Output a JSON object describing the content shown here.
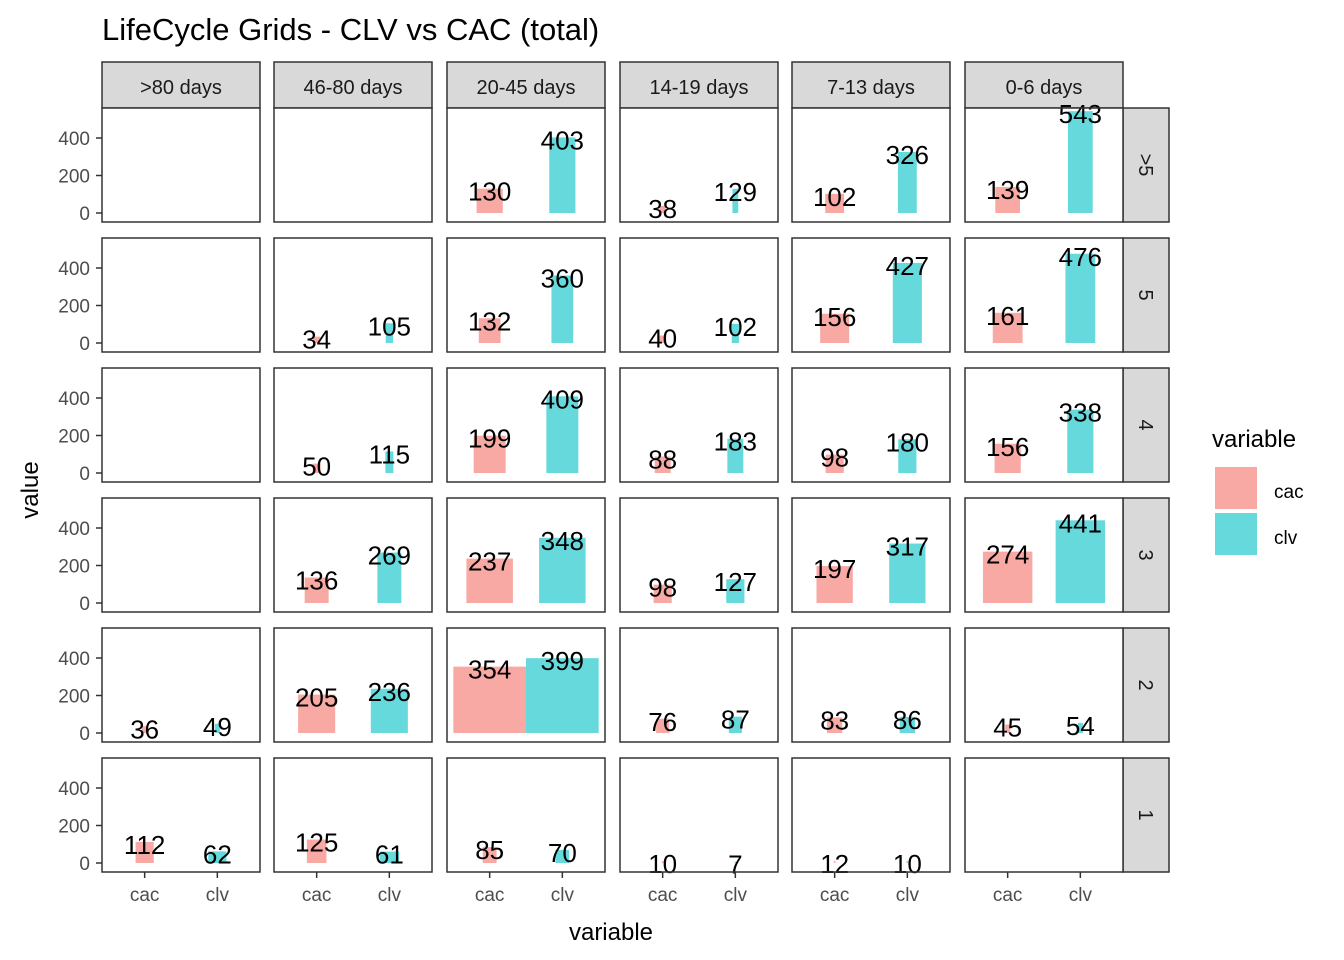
{
  "chart_data": {
    "type": "bar",
    "title": "LifeCycle Grids - CLV vs CAC (total)",
    "xlabel": "variable",
    "ylabel": "value",
    "ylim": [
      0,
      560
    ],
    "yticks": [
      0,
      200,
      400
    ],
    "grid": false,
    "facet_columns": [
      ">80 days",
      "46-80 days",
      "20-45 days",
      "14-19 days",
      "7-13 days",
      "0-6 days"
    ],
    "facet_rows": [
      ">5",
      "5",
      "4",
      "3",
      "2",
      "1"
    ],
    "categories": [
      "cac",
      "clv"
    ],
    "legend": {
      "title": "variable",
      "position": "right",
      "entries": [
        {
          "label": "cac",
          "color": "#F8A9A4"
        },
        {
          "label": "clv",
          "color": "#66D9DC"
        }
      ]
    },
    "bar_width_note": "bar width is relative (share of maximum panel width), estimated from the figure",
    "panels": [
      {
        "row": ">5",
        "col": ">80 days",
        "cac": null,
        "clv": null,
        "width": 0
      },
      {
        "row": ">5",
        "col": "46-80 days",
        "cac": null,
        "clv": null,
        "width": 0
      },
      {
        "row": ">5",
        "col": "20-45 days",
        "cac": 130,
        "clv": 403,
        "width": 0.36
      },
      {
        "row": ">5",
        "col": "14-19 days",
        "cac": 38,
        "clv": 129,
        "width": 0.08
      },
      {
        "row": ">5",
        "col": "7-13 days",
        "cac": 102,
        "clv": 326,
        "width": 0.26
      },
      {
        "row": ">5",
        "col": "0-6 days",
        "cac": 139,
        "clv": 543,
        "width": 0.34
      },
      {
        "row": "5",
        "col": ">80 days",
        "cac": null,
        "clv": null,
        "width": 0
      },
      {
        "row": "5",
        "col": "46-80 days",
        "cac": 34,
        "clv": 105,
        "width": 0.1
      },
      {
        "row": "5",
        "col": "20-45 days",
        "cac": 132,
        "clv": 360,
        "width": 0.3
      },
      {
        "row": "5",
        "col": "14-19 days",
        "cac": 40,
        "clv": 102,
        "width": 0.1
      },
      {
        "row": "5",
        "col": "7-13 days",
        "cac": 156,
        "clv": 427,
        "width": 0.4
      },
      {
        "row": "5",
        "col": "0-6 days",
        "cac": 161,
        "clv": 476,
        "width": 0.41
      },
      {
        "row": "4",
        "col": ">80 days",
        "cac": null,
        "clv": null,
        "width": 0
      },
      {
        "row": "4",
        "col": "46-80 days",
        "cac": 50,
        "clv": 115,
        "width": 0.11
      },
      {
        "row": "4",
        "col": "20-45 days",
        "cac": 199,
        "clv": 409,
        "width": 0.44
      },
      {
        "row": "4",
        "col": "14-19 days",
        "cac": 88,
        "clv": 183,
        "width": 0.22
      },
      {
        "row": "4",
        "col": "7-13 days",
        "cac": 98,
        "clv": 180,
        "width": 0.25
      },
      {
        "row": "4",
        "col": "0-6 days",
        "cac": 156,
        "clv": 338,
        "width": 0.36
      },
      {
        "row": "3",
        "col": ">80 days",
        "cac": null,
        "clv": null,
        "width": 0
      },
      {
        "row": "3",
        "col": "46-80 days",
        "cac": 136,
        "clv": 269,
        "width": 0.33
      },
      {
        "row": "3",
        "col": "20-45 days",
        "cac": 237,
        "clv": 348,
        "width": 0.64
      },
      {
        "row": "3",
        "col": "14-19 days",
        "cac": 98,
        "clv": 127,
        "width": 0.25
      },
      {
        "row": "3",
        "col": "7-13 days",
        "cac": 197,
        "clv": 317,
        "width": 0.5
      },
      {
        "row": "3",
        "col": "0-6 days",
        "cac": 274,
        "clv": 441,
        "width": 0.68
      },
      {
        "row": "2",
        "col": ">80 days",
        "cac": 36,
        "clv": 49,
        "width": 0.07
      },
      {
        "row": "2",
        "col": "46-80 days",
        "cac": 205,
        "clv": 236,
        "width": 0.51
      },
      {
        "row": "2",
        "col": "20-45 days",
        "cac": 354,
        "clv": 399,
        "width": 1.0
      },
      {
        "row": "2",
        "col": "14-19 days",
        "cac": 76,
        "clv": 87,
        "width": 0.18
      },
      {
        "row": "2",
        "col": "7-13 days",
        "cac": 83,
        "clv": 86,
        "width": 0.21
      },
      {
        "row": "2",
        "col": "0-6 days",
        "cac": 45,
        "clv": 54,
        "width": 0.07
      },
      {
        "row": "1",
        "col": ">80 days",
        "cac": 112,
        "clv": 62,
        "width": 0.25
      },
      {
        "row": "1",
        "col": "46-80 days",
        "cac": 125,
        "clv": 61,
        "width": 0.27
      },
      {
        "row": "1",
        "col": "20-45 days",
        "cac": 85,
        "clv": 70,
        "width": 0.19
      },
      {
        "row": "1",
        "col": "14-19 days",
        "cac": 10,
        "clv": 7,
        "width": 0.02
      },
      {
        "row": "1",
        "col": "7-13 days",
        "cac": 12,
        "clv": 10,
        "width": 0.02
      },
      {
        "row": "1",
        "col": "0-6 days",
        "cac": null,
        "clv": null,
        "width": 0
      }
    ]
  }
}
